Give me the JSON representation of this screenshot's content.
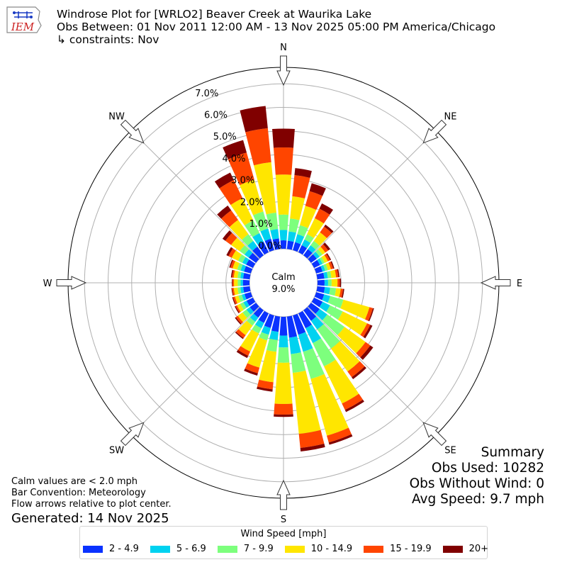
{
  "header": {
    "title": "Windrose Plot for [WRLO2] Beaver Creek at Waurika Lake",
    "obs_between": "Obs Between: 01 Nov 2011 12:00 AM - 13 Nov 2025 05:00 PM America/Chicago",
    "constraints": "↳ constraints: Nov"
  },
  "logo_text": "IEM",
  "summary": {
    "heading": "Summary",
    "obs_used": "Obs Used: 10282",
    "obs_without_wind": "Obs Without Wind: 0",
    "avg_speed": "Avg Speed: 9.7 mph"
  },
  "notes": {
    "calm_note": "Calm values are < 2.0 mph",
    "bar_convention": "Bar Convention: Meteorology",
    "flow_note": "Flow arrows relative to plot center.",
    "generated": "Generated: 14 Nov 2025"
  },
  "legend": {
    "title": "Wind Speed [mph]",
    "items": [
      {
        "label": "2 - 4.9",
        "color": "#0a32ff"
      },
      {
        "label": "5 - 6.9",
        "color": "#00d2f0"
      },
      {
        "label": "7 - 9.9",
        "color": "#7dff7d"
      },
      {
        "label": "10 - 14.9",
        "color": "#ffe600"
      },
      {
        "label": "15 - 19.9",
        "color": "#ff4500"
      },
      {
        "label": "20+",
        "color": "#800000"
      }
    ]
  },
  "chart_data": {
    "type": "windrose",
    "title": "Windrose Plot for [WRLO2] Beaver Creek at Waurika Lake",
    "calm_label": "Calm",
    "calm_value": "9.0%",
    "radial_ticks": [
      "0.0%",
      "1.0%",
      "2.0%",
      "3.0%",
      "4.0%",
      "5.0%",
      "6.0%",
      "7.0%"
    ],
    "radial_max": 7.7,
    "directions": [
      "N",
      "NE",
      "E",
      "SE",
      "S",
      "SW",
      "W",
      "NW"
    ],
    "bar_directions_deg": [
      0,
      10,
      20,
      30,
      40,
      50,
      60,
      70,
      80,
      90,
      100,
      110,
      120,
      130,
      140,
      150,
      160,
      170,
      180,
      190,
      200,
      210,
      220,
      230,
      240,
      250,
      260,
      270,
      280,
      290,
      300,
      310,
      320,
      330,
      340,
      350
    ],
    "speed_bins": [
      "2 - 4.9",
      "5 - 6.9",
      "7 - 9.9",
      "10 - 14.9",
      "15 - 19.9",
      "20+"
    ],
    "cumulative_percent": [
      [
        0.36,
        0.8,
        1.45,
        3.15,
        4.3,
        5.1
      ],
      [
        0.35,
        0.75,
        1.3,
        2.25,
        3.15,
        3.45
      ],
      [
        0.35,
        0.7,
        1.1,
        1.95,
        2.6,
        2.95
      ],
      [
        0.33,
        0.6,
        0.85,
        1.6,
        2.05,
        2.3
      ],
      [
        0.32,
        0.52,
        0.75,
        1.2,
        1.5,
        1.6
      ],
      [
        0.3,
        0.45,
        0.6,
        0.75,
        0.9,
        1.0
      ],
      [
        0.28,
        0.4,
        0.5,
        0.65,
        0.75,
        0.8
      ],
      [
        0.28,
        0.4,
        0.52,
        0.65,
        0.75,
        0.8
      ],
      [
        0.3,
        0.45,
        0.6,
        0.8,
        0.9,
        0.95
      ],
      [
        0.3,
        0.45,
        0.6,
        0.85,
        0.95,
        1.0
      ],
      [
        0.32,
        0.55,
        0.8,
        1.0,
        1.1,
        1.15
      ],
      [
        0.35,
        0.62,
        1.2,
        2.35,
        2.5,
        2.55
      ],
      [
        0.4,
        0.75,
        1.35,
        2.5,
        2.65,
        2.75
      ],
      [
        0.45,
        0.85,
        1.75,
        2.85,
        3.1,
        3.25
      ],
      [
        0.55,
        1.0,
        2.0,
        3.2,
        3.5,
        3.6
      ],
      [
        0.7,
        1.4,
        2.5,
        4.25,
        4.55,
        4.65
      ],
      [
        0.85,
        1.6,
        2.8,
        5.3,
        5.6,
        5.7
      ],
      [
        0.9,
        1.6,
        2.4,
        5.0,
        5.6,
        5.75
      ],
      [
        0.8,
        1.3,
        1.95,
        3.7,
        4.15,
        4.25
      ],
      [
        0.65,
        1.0,
        1.5,
        2.8,
        3.1,
        3.2
      ],
      [
        0.55,
        0.85,
        1.1,
        2.3,
        2.55,
        2.65
      ],
      [
        0.45,
        0.7,
        0.95,
        1.8,
        2.0,
        2.1
      ],
      [
        0.38,
        0.6,
        0.8,
        1.3,
        1.45,
        1.5
      ],
      [
        0.32,
        0.5,
        0.7,
        0.95,
        1.05,
        1.1
      ],
      [
        0.3,
        0.45,
        0.6,
        0.75,
        0.82,
        0.86
      ],
      [
        0.28,
        0.4,
        0.55,
        0.7,
        0.78,
        0.82
      ],
      [
        0.28,
        0.4,
        0.52,
        0.68,
        0.75,
        0.78
      ],
      [
        0.28,
        0.38,
        0.5,
        0.66,
        0.72,
        0.75
      ],
      [
        0.28,
        0.4,
        0.52,
        0.68,
        0.75,
        0.8
      ],
      [
        0.3,
        0.45,
        0.6,
        0.8,
        0.9,
        0.95
      ],
      [
        0.32,
        0.5,
        0.7,
        1.0,
        1.15,
        1.25
      ],
      [
        0.38,
        0.6,
        0.85,
        1.3,
        1.6,
        1.75
      ],
      [
        0.45,
        0.75,
        1.1,
        1.85,
        2.35,
        2.6
      ],
      [
        0.5,
        0.9,
        1.5,
        2.55,
        3.4,
        3.75
      ],
      [
        0.5,
        0.95,
        1.7,
        3.1,
        4.3,
        4.85
      ],
      [
        0.45,
        0.85,
        1.55,
        3.7,
        5.15,
        6.1
      ]
    ],
    "grid": true
  }
}
